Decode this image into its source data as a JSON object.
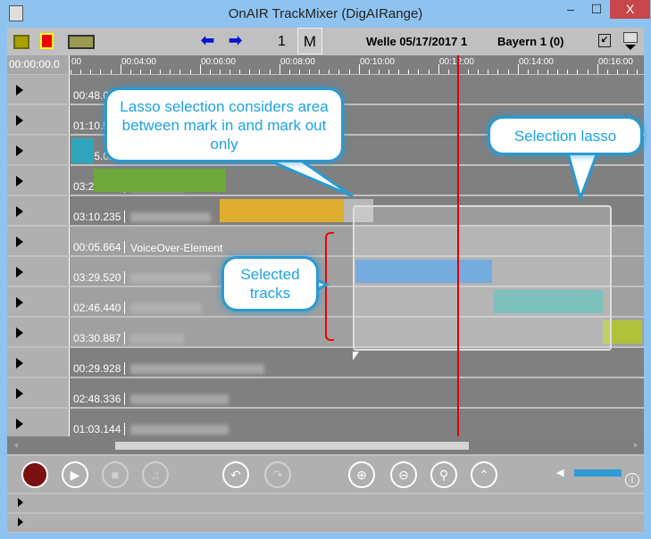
{
  "window": {
    "title": "OnAIR TrackMixer (DigAIRange)",
    "minimize": "‒",
    "maximize": "☐",
    "close": "X"
  },
  "toolbar": {
    "page_number": "1",
    "mode_button": "M",
    "station_date": "Welle 05/17/2017 1",
    "channel": "Bayern 1 (0)"
  },
  "ruler": {
    "position": "00:00:00.0",
    "labels": [
      "00",
      "00:04:00",
      "00:06:00",
      "00:08:00",
      "00:10:00",
      "00:12:00",
      "00:14:00",
      "00:16:00"
    ]
  },
  "tracks": [
    {
      "duration": "00:48.07",
      "selected": false
    },
    {
      "duration": "01:10.5",
      "selected": false
    },
    {
      "duration": "02:15.02",
      "selected": false
    },
    {
      "duration": "03:20.136",
      "selected": false
    },
    {
      "duration": "03:10.235",
      "selected": false
    },
    {
      "duration": "00:05.664",
      "name": "VoiceOver-Element",
      "selected": true
    },
    {
      "duration": "03:29.520",
      "selected": true
    },
    {
      "duration": "02:46.440",
      "selected": true
    },
    {
      "duration": "03:30.887",
      "selected": true
    },
    {
      "duration": "00:29.928",
      "selected": false
    },
    {
      "duration": "02:48.336",
      "selected": false
    },
    {
      "duration": "01:03.144",
      "selected": false
    }
  ],
  "callouts": {
    "lasso_note": "Lasso selection considers area between mark in and mark out only",
    "selection_lasso": "Selection lasso",
    "selected_tracks": "Selected tracks"
  },
  "volume_percent": 100,
  "colors": {
    "playhead": "#e00000",
    "record": "#7a1010",
    "volume": "#2e9bd6",
    "clip_blue": "#4f94d4",
    "clip_teal": "#5aafa8",
    "clip_green": "#6fa83a",
    "clip_orange": "#dfae2e",
    "clip_lime": "#b0c23a",
    "callout_text": "#1aa3e0"
  }
}
